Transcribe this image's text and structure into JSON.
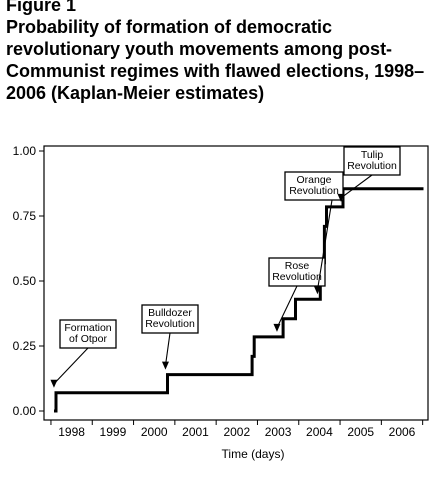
{
  "figure": {
    "label": "Figure 1",
    "title": "Probability of formation of democratic revolutionary youth movements among post-Communist regimes with flawed elections, 1998–2006 (Kaplan-Meier estimates)"
  },
  "chart_data": {
    "type": "line",
    "title": "Probability of formation of democratic revolutionary youth movements among post-Communist regimes with flawed elections, 1998–2006 (Kaplan-Meier estimates)",
    "xlabel": "Time (days)",
    "ylabel": "",
    "ylim": [
      0,
      1
    ],
    "xlim": [
      1997.5,
      2007.0
    ],
    "yticks": [
      "0.00",
      "0.25",
      "0.50",
      "0.75",
      "1.00"
    ],
    "xtick_labels": [
      "1998",
      "1999",
      "2000",
      "2001",
      "2002",
      "2003",
      "2004",
      "2005",
      "2006"
    ],
    "grid": false,
    "series": [
      {
        "x": [
          1997.5,
          1998.0,
          1998.0,
          2000.7,
          2000.7,
          2002.75,
          2002.75,
          2002.8,
          2002.8,
          2003.5,
          2003.5,
          2003.8,
          2003.8,
          2004.4,
          2004.4,
          2004.5,
          2004.5,
          2004.55,
          2004.55,
          2004.6,
          2004.6,
          2004.95,
          2004.95,
          2006.9
        ],
        "y": [
          0.0,
          0.0,
          0.07,
          0.07,
          0.14,
          0.14,
          0.21,
          0.21,
          0.285,
          0.285,
          0.355,
          0.355,
          0.43,
          0.43,
          0.57,
          0.57,
          0.71,
          0.71,
          0.785,
          0.785,
          0.785,
          0.785,
          0.855,
          0.855
        ]
      }
    ],
    "annotations": [
      {
        "lines": [
          "Formation",
          "of Otpor"
        ],
        "x": 1998.0,
        "y": 0.07
      },
      {
        "lines": [
          "Bulldozer",
          "Revolution"
        ],
        "x": 2000.7,
        "y": 0.14
      },
      {
        "lines": [
          "Rose",
          "Revolution"
        ],
        "x": 2003.4,
        "y": 0.285
      },
      {
        "lines": [
          "Orange",
          "Revolution"
        ],
        "x": 2004.38,
        "y": 0.43
      },
      {
        "lines": [
          "Tulip",
          "Revolution"
        ],
        "x": 2004.95,
        "y": 0.785
      }
    ]
  }
}
